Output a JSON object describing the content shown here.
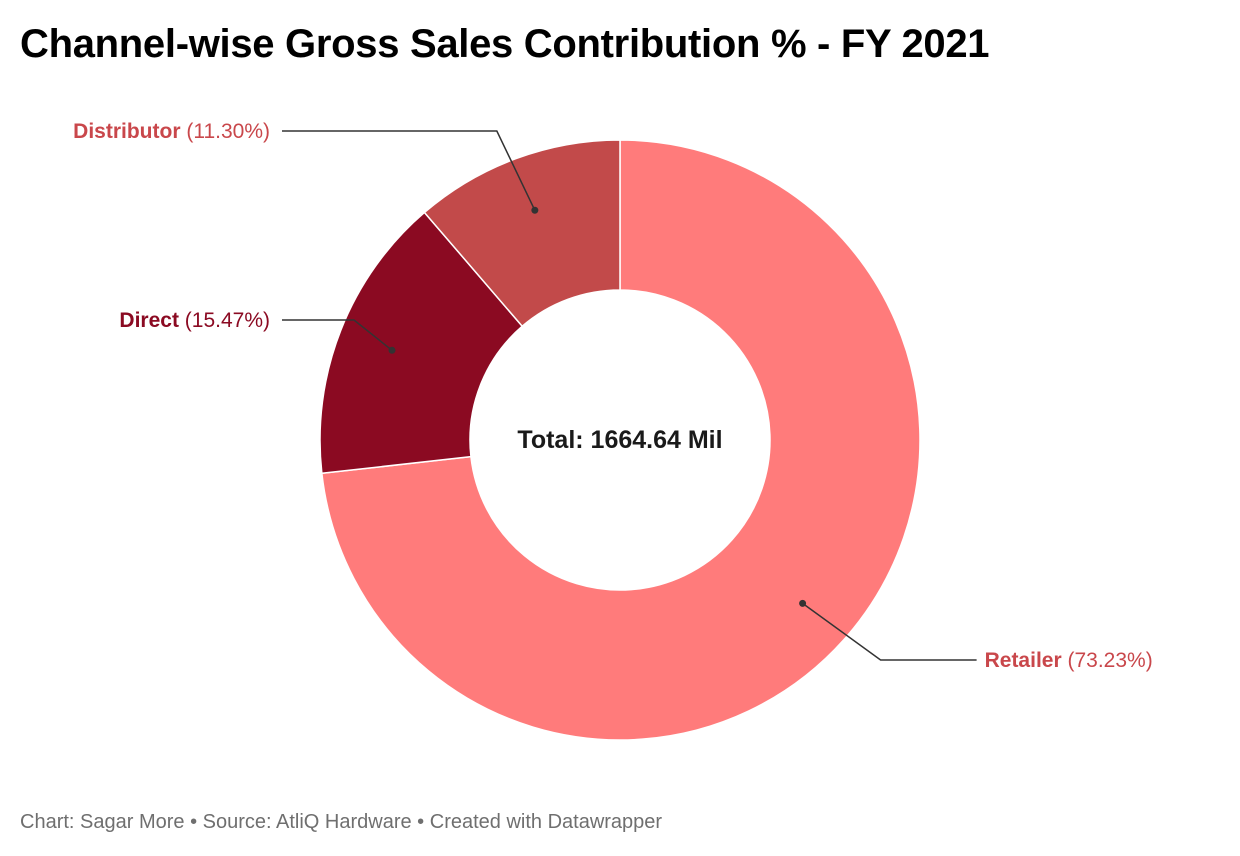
{
  "chart_data": {
    "type": "pie",
    "variant": "donut",
    "title": "Channel-wise Gross Sales Contribution % - FY 2021",
    "center_label": "Total: 1664.64 Mil",
    "categories": [
      "Retailer",
      "Direct",
      "Distributor"
    ],
    "values": [
      73.23,
      15.47,
      11.3
    ],
    "value_labels": [
      "(73.23%)",
      "(15.47%)",
      "(11.30%)"
    ],
    "colors": [
      "#ff7b7b",
      "#8b0a22",
      "#c24a4a"
    ],
    "label_colors": [
      "#c9474b",
      "#8b0a22",
      "#c9474b"
    ],
    "legend": "none"
  },
  "footer": {
    "credit": "Chart: Sagar More",
    "separator": " • ",
    "source": "Source: AtliQ Hardware",
    "tool": "Created with Datawrapper"
  }
}
